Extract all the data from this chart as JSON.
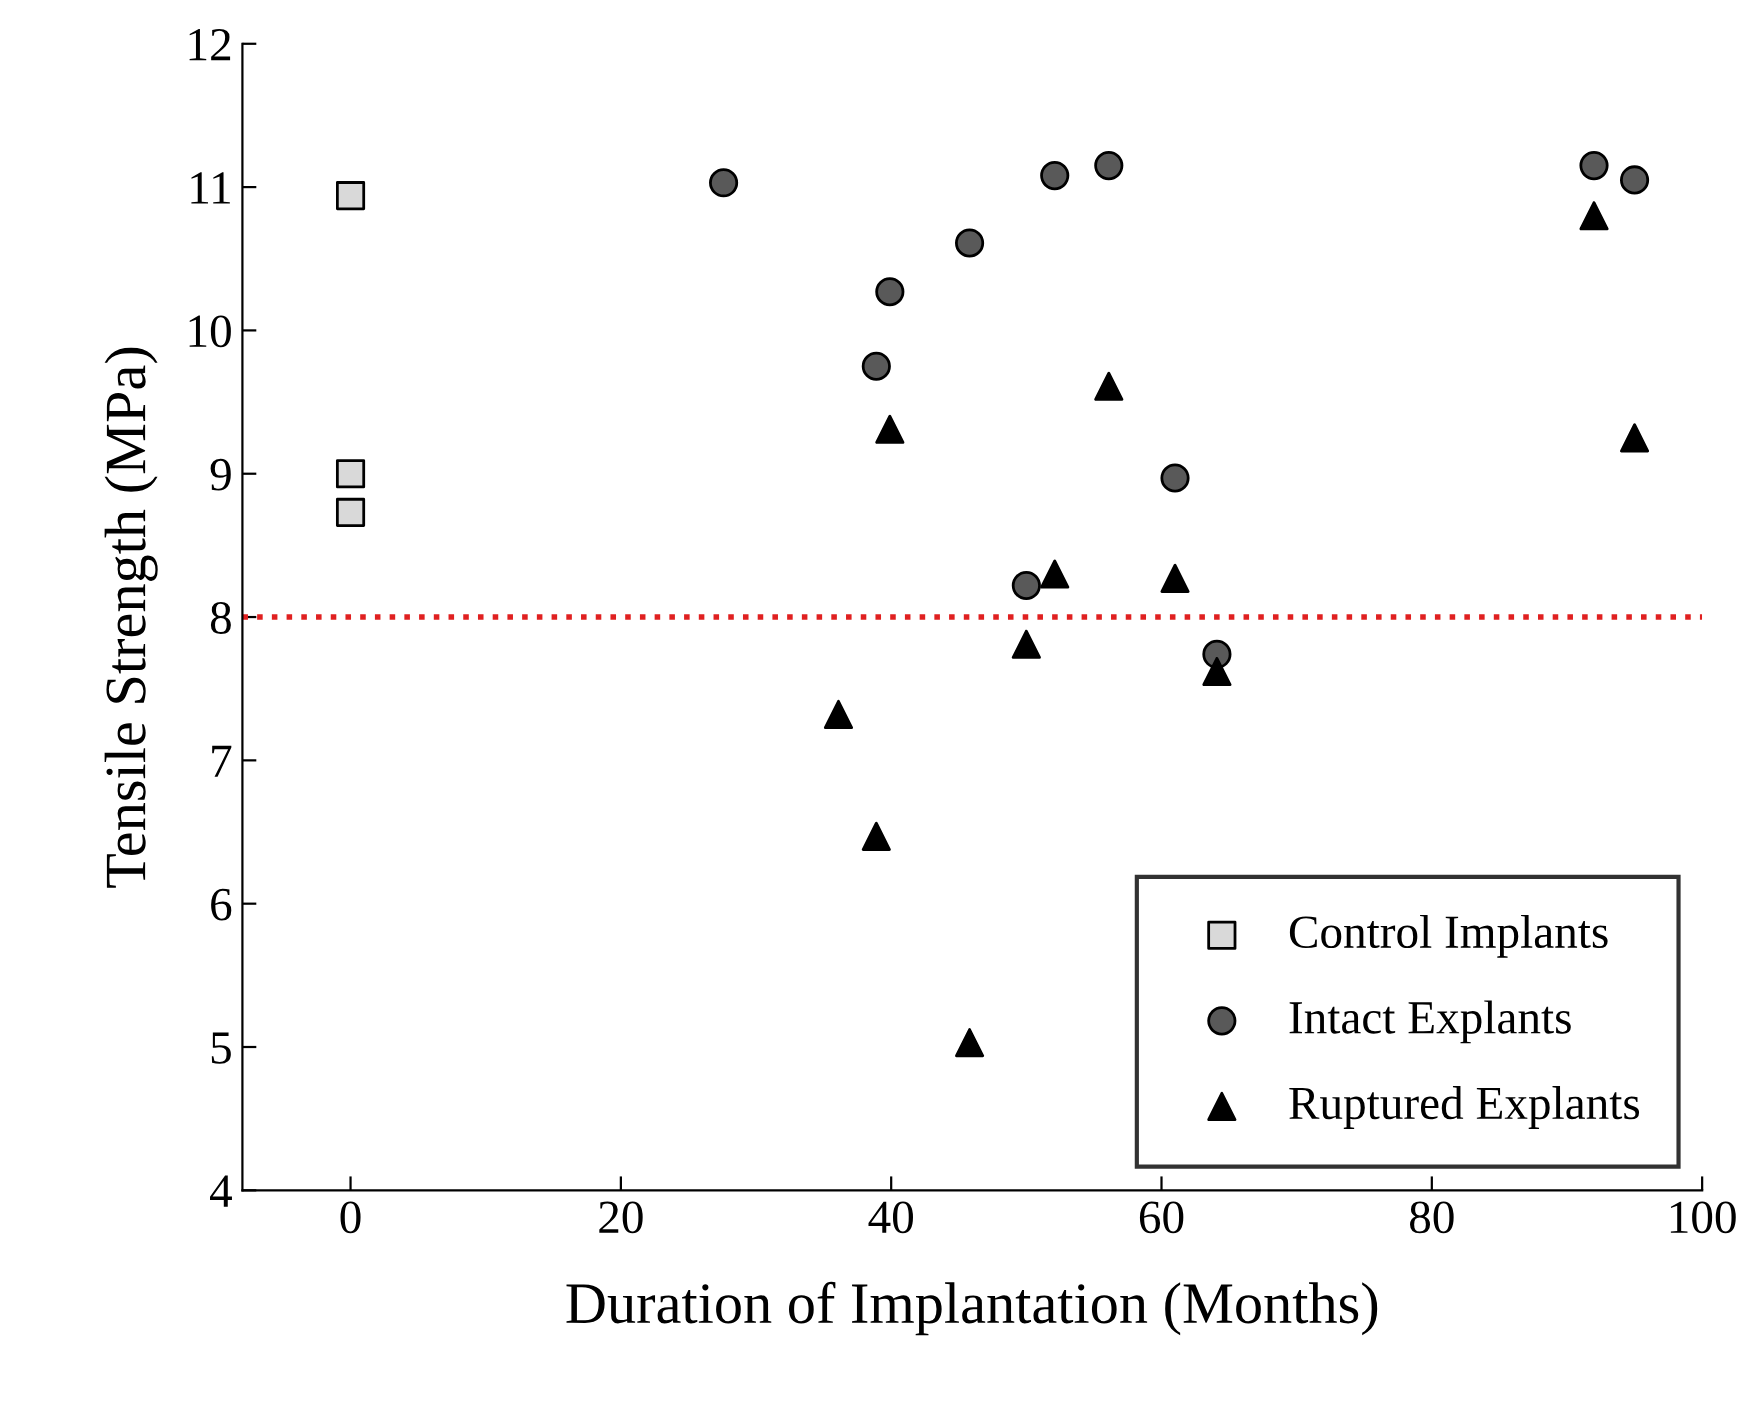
{
  "chart_data": {
    "type": "scatter",
    "xlabel": "Duration of Implantation (Months)",
    "ylabel": "Tensile Strength (MPa)",
    "xlim": [
      -8,
      100
    ],
    "xticks": [
      0,
      20,
      40,
      60,
      80,
      100
    ],
    "ylim": [
      4,
      12
    ],
    "yticks": [
      4,
      5,
      6,
      7,
      8,
      9,
      10,
      11,
      12
    ],
    "grid": false,
    "legend": "bottom right",
    "series": [
      {
        "name": "Control Implants",
        "color": "#d9d9d9",
        "marker": "square",
        "x": [
          0,
          0,
          0
        ],
        "values": [
          10.94,
          9.0,
          8.73
        ]
      },
      {
        "name": "Intact Explants",
        "color": "#595959",
        "marker": "circle",
        "x": [
          27.6,
          38.9,
          39.9,
          45.8,
          50.0,
          52.1,
          56.1,
          61.0,
          64.1,
          92.0,
          95.0
        ],
        "values": [
          11.03,
          9.75,
          10.27,
          10.61,
          8.22,
          11.08,
          11.15,
          8.97,
          7.74,
          11.15,
          11.05
        ]
      },
      {
        "name": "Ruptured Explants",
        "color": "#000000",
        "marker": "triangle",
        "x": [
          36.1,
          38.9,
          39.9,
          45.8,
          50.0,
          52.1,
          56.1,
          61.0,
          64.1,
          92.0,
          95.0
        ],
        "values": [
          7.32,
          6.47,
          9.31,
          5.03,
          7.81,
          8.3,
          9.61,
          8.27,
          7.62,
          10.8,
          9.25
        ]
      }
    ],
    "ref_lines": [
      {
        "axis": "y",
        "value": 8,
        "color": "#e02020",
        "line_style": "dotted"
      }
    ]
  }
}
